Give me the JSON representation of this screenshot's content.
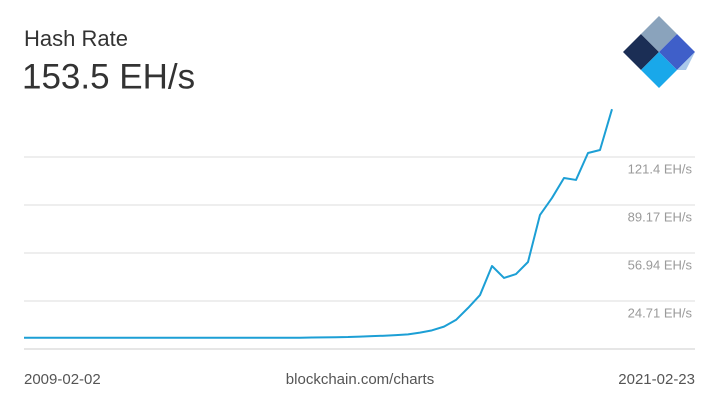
{
  "chart_data": {
    "type": "line",
    "title": "Hash Rate",
    "subtitle": "153.5 EH/s",
    "source": "blockchain.com/charts",
    "categories": [
      "2009-02-02",
      null,
      null,
      null,
      null,
      null,
      null,
      null,
      null,
      null,
      null,
      null,
      null,
      null,
      null,
      null,
      null,
      null,
      null,
      null,
      null,
      null,
      null,
      null,
      null,
      null,
      null,
      null,
      null,
      null,
      null,
      null,
      null,
      null,
      null,
      null,
      null,
      null,
      null,
      null,
      null,
      null,
      null,
      null,
      null,
      null,
      null,
      null,
      null,
      "2021-02-23"
    ],
    "values": [
      0,
      0,
      0,
      0,
      0,
      0,
      0,
      0,
      0,
      0,
      0,
      0,
      0,
      0,
      0,
      0,
      0,
      0,
      0,
      0,
      0,
      0,
      0,
      0,
      0.2,
      0.3,
      0.4,
      0.5,
      0.8,
      1.1,
      1.4,
      1.8,
      2.3,
      3.5,
      5.0,
      7.5,
      12,
      20,
      28.7,
      48.2,
      40.2,
      42.8,
      50.9,
      82.5,
      93.9,
      107.3,
      106,
      124.1,
      126.1,
      153.5
    ],
    "color": "#1c9fd5",
    "ylim": [
      -7.52,
      159.67
    ],
    "yticks": [
      {
        "value": 24.71,
        "label": "24.71 EH/s"
      },
      {
        "value": 56.94,
        "label": "56.94 EH/s"
      },
      {
        "value": 89.17,
        "label": "89.17 EH/s"
      },
      {
        "value": 121.4,
        "label": "121.4 EH/s"
      }
    ],
    "grid": true
  }
}
